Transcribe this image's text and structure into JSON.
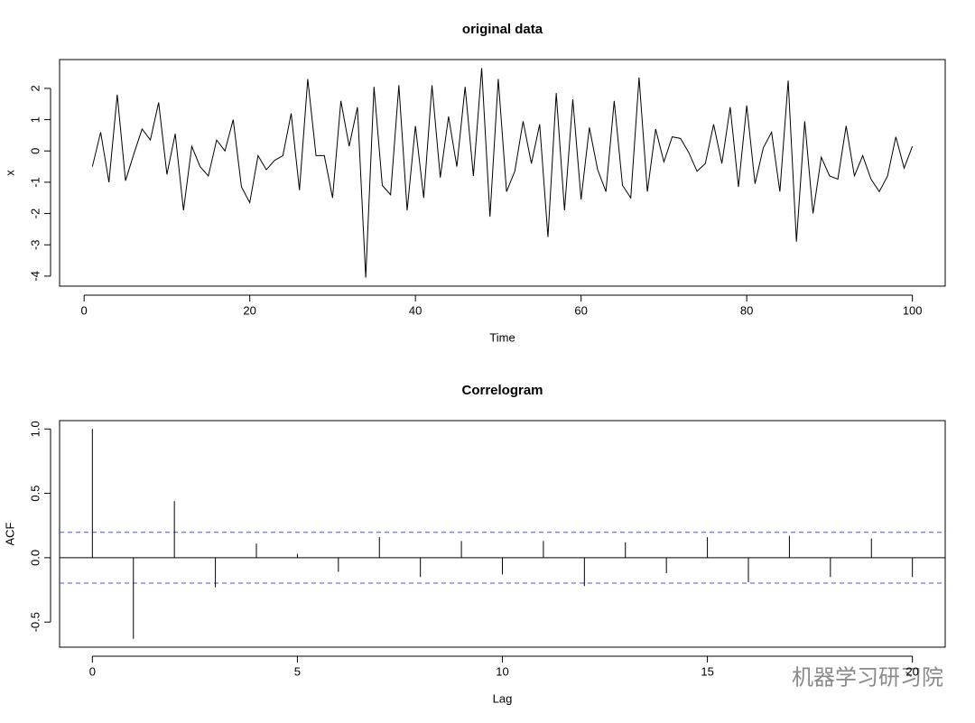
{
  "chart_data": [
    {
      "type": "line",
      "title": "original data",
      "x_label": "Time",
      "y_label": "x",
      "color": "#000000",
      "x": [
        1,
        2,
        3,
        4,
        5,
        6,
        7,
        8,
        9,
        10,
        11,
        12,
        13,
        14,
        15,
        16,
        17,
        18,
        19,
        20,
        21,
        22,
        23,
        24,
        25,
        26,
        27,
        28,
        29,
        30,
        31,
        32,
        33,
        34,
        35,
        36,
        37,
        38,
        39,
        40,
        41,
        42,
        43,
        44,
        45,
        46,
        47,
        48,
        49,
        50,
        51,
        52,
        53,
        54,
        55,
        56,
        57,
        58,
        59,
        60,
        61,
        62,
        63,
        64,
        65,
        66,
        67,
        68,
        69,
        70,
        71,
        72,
        73,
        74,
        75,
        76,
        77,
        78,
        79,
        80,
        81,
        82,
        83,
        84,
        85,
        86,
        87,
        88,
        89,
        90,
        91,
        92,
        93,
        94,
        95,
        96,
        97,
        98,
        99,
        100
      ],
      "values": [
        -0.5,
        0.6,
        -1.0,
        1.8,
        -0.95,
        -0.1,
        0.7,
        0.35,
        1.55,
        -0.75,
        0.55,
        -1.9,
        0.15,
        -0.5,
        -0.8,
        0.35,
        0.0,
        1.0,
        -1.15,
        -1.65,
        -0.15,
        -0.6,
        -0.3,
        -0.15,
        1.2,
        -1.25,
        2.3,
        -0.15,
        -0.15,
        -1.5,
        1.6,
        0.15,
        1.4,
        -4.05,
        2.05,
        -1.1,
        -1.4,
        2.1,
        -1.9,
        0.8,
        -1.5,
        2.1,
        -0.85,
        1.1,
        -0.5,
        2.05,
        -0.8,
        2.65,
        -2.1,
        2.3,
        -1.3,
        -0.65,
        0.95,
        -0.4,
        0.85,
        -2.75,
        1.85,
        -1.9,
        1.65,
        -1.55,
        0.75,
        -0.6,
        -1.3,
        1.6,
        -1.1,
        -1.5,
        2.35,
        -1.3,
        0.7,
        -0.35,
        0.45,
        0.4,
        -0.05,
        -0.65,
        -0.4,
        0.85,
        -0.4,
        1.4,
        -1.15,
        1.45,
        -1.05,
        0.1,
        0.6,
        -1.3,
        2.25,
        -2.9,
        0.95,
        -2.0,
        -0.2,
        -0.8,
        -0.9,
        0.8,
        -0.8,
        -0.15,
        -0.9,
        -1.3,
        -0.8,
        0.45,
        -0.55,
        0.15
      ],
      "xlim": [
        -2.96,
        103.96
      ],
      "xticks": [
        0,
        20,
        40,
        60,
        80,
        100
      ],
      "ylim": [
        -4.32,
        2.92
      ],
      "yticks": [
        -4,
        -3,
        -2,
        -1,
        0,
        1,
        2
      ]
    },
    {
      "type": "stem",
      "title": "Correlogram",
      "x_label": "Lag",
      "y_label": "ACF",
      "color": "#000000",
      "x": [
        0,
        1,
        2,
        3,
        4,
        5,
        6,
        7,
        8,
        9,
        10,
        11,
        12,
        13,
        14,
        15,
        16,
        17,
        18,
        19,
        20
      ],
      "values": [
        1.0,
        -0.63,
        0.44,
        -0.23,
        0.11,
        0.03,
        -0.11,
        0.16,
        -0.15,
        0.13,
        -0.13,
        0.13,
        -0.22,
        0.12,
        -0.12,
        0.16,
        -0.19,
        0.17,
        -0.15,
        0.15,
        -0.15
      ],
      "xlim": [
        -0.8,
        20.8
      ],
      "xticks": [
        0,
        5,
        10,
        15,
        20
      ],
      "ylim": [
        -0.695,
        1.065
      ],
      "yticks": [
        -0.5,
        {
          "value": 0,
          "label": "0.0"
        },
        0.5,
        {
          "value": 1,
          "label": "1.0"
        }
      ],
      "ci_lines": [
        0.197,
        -0.197
      ],
      "ci_color": "#4d4dff"
    }
  ],
  "watermark": "机器学习研习院"
}
